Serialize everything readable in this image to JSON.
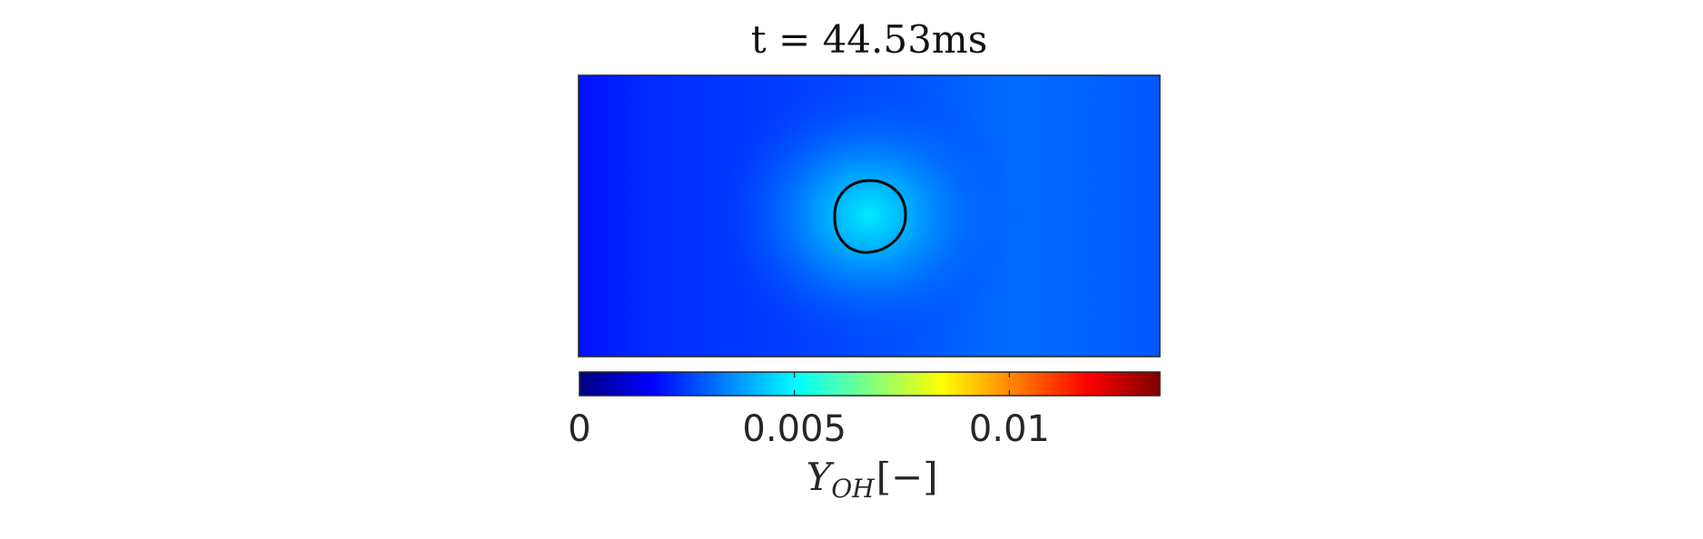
{
  "chart_data": {
    "type": "heatmap",
    "title": "t = 44.53ms",
    "field": "Y_OH",
    "colormap": "jet",
    "colorbar": {
      "label": "Y_OH [−]",
      "label_main": "Y",
      "label_sub": "OH",
      "label_unit": "[−]",
      "range": [
        0,
        0.0135
      ],
      "ticks": [
        0,
        0.005,
        0.01
      ],
      "tick_labels": [
        "0",
        "0.005",
        "0.01"
      ],
      "location": "below"
    },
    "background_value": 0.0026,
    "left_edge_value": 0.0019,
    "right_region_value": 0.0031,
    "kernel_peak_value": 0.0048,
    "kernel_contour": "closed black iso-line around kernel"
  }
}
